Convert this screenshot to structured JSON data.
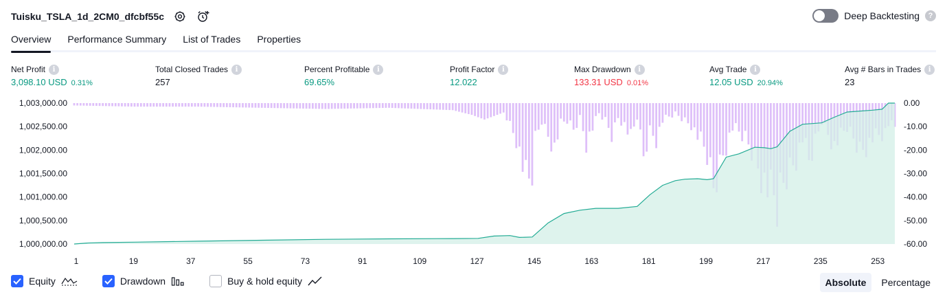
{
  "header": {
    "title": "Tuisku_TSLA_1d_2CM0_dfcbf55c",
    "settings_icon": "gear-icon",
    "alert_icon": "add-alert-icon",
    "deep_backtesting_label": "Deep Backtesting",
    "deep_backtesting_on": false
  },
  "tabs": [
    {
      "label": "Overview",
      "active": true
    },
    {
      "label": "Performance Summary",
      "active": false
    },
    {
      "label": "List of Trades",
      "active": false
    },
    {
      "label": "Properties",
      "active": false
    }
  ],
  "metrics": {
    "net_profit": {
      "label": "Net Profit",
      "value": "3,098.10 USD",
      "sub": "0.31%"
    },
    "total_closed_trades": {
      "label": "Total Closed Trades",
      "value": "257"
    },
    "percent_profitable": {
      "label": "Percent Profitable",
      "value": "69.65%"
    },
    "profit_factor": {
      "label": "Profit Factor",
      "value": "12.022"
    },
    "max_drawdown": {
      "label": "Max Drawdown",
      "value": "133.31 USD",
      "sub": "0.01%"
    },
    "avg_trade": {
      "label": "Avg Trade",
      "value": "12.05 USD",
      "sub": "20.94%"
    },
    "avg_bars": {
      "label": "Avg # Bars in Trades",
      "value": "23"
    }
  },
  "colors": {
    "accent": "#2962ff",
    "equity_line": "#22ab94",
    "equity_fill": "#d3efe7",
    "drawdown_bar": "#d8b4f8",
    "positive": "#089981",
    "negative": "#f23645"
  },
  "chart_data": {
    "type": "area",
    "x_ticks": [
      "1",
      "19",
      "37",
      "55",
      "73",
      "91",
      "109",
      "127",
      "145",
      "163",
      "181",
      "199",
      "217",
      "235",
      "253"
    ],
    "left_axis": {
      "label": "",
      "ticks": [
        "1,003,000.00",
        "1,002,500.00",
        "1,002,000.00",
        "1,001,500.00",
        "1,001,000.00",
        "1,000,500.00",
        "1,000,000.00"
      ],
      "range": [
        1000000,
        1003000
      ]
    },
    "right_axis": {
      "label": "",
      "ticks": [
        "0.00",
        "-10.00",
        "-20.00",
        "-30.00",
        "-40.00",
        "-50.00",
        "-60.00"
      ],
      "range": [
        -60,
        0
      ]
    },
    "xlim": [
      1,
      259
    ],
    "series": [
      {
        "name": "Equity",
        "axis": "left",
        "x": [
          1,
          5,
          10,
          20,
          40,
          60,
          80,
          100,
          120,
          128,
          133,
          138,
          141,
          145,
          150,
          155,
          160,
          165,
          172,
          178,
          182,
          186,
          190,
          193,
          197,
          200,
          202,
          206,
          210,
          215,
          218,
          220,
          222,
          226,
          230,
          236,
          240,
          244,
          248,
          252,
          255,
          257,
          259
        ],
        "y": [
          1000000,
          1000020,
          1000030,
          1000040,
          1000060,
          1000080,
          1000100,
          1000110,
          1000115,
          1000120,
          1000170,
          1000180,
          1000140,
          1000150,
          1000450,
          1000650,
          1000720,
          1000760,
          1000760,
          1000800,
          1001050,
          1001250,
          1001350,
          1001380,
          1001390,
          1001370,
          1001390,
          1001850,
          1001920,
          1002060,
          1002050,
          1002030,
          1002070,
          1002400,
          1002550,
          1002580,
          1002700,
          1002810,
          1002830,
          1002850,
          1002870,
          1003000,
          1003000
        ]
      },
      {
        "name": "Drawdown",
        "axis": "right",
        "type": "bar",
        "anchors_x": [
          1,
          20,
          40,
          60,
          80,
          100,
          120,
          126,
          130,
          136,
          140,
          142,
          143,
          144,
          145,
          146,
          148,
          150,
          152,
          154,
          156,
          158,
          160,
          162,
          164,
          166,
          168,
          170,
          172,
          174,
          176,
          178,
          180,
          182,
          184,
          186,
          190,
          195,
          198,
          200,
          202,
          205,
          208,
          212,
          215,
          217,
          219,
          221,
          222,
          223,
          225,
          228,
          230,
          232,
          236,
          240,
          244,
          248,
          250,
          252,
          256,
          258,
          259
        ],
        "anchors_y": [
          -1,
          -1.5,
          -1.5,
          -2,
          -2.5,
          -2,
          -3,
          -5,
          -7,
          -4,
          -20,
          -35,
          -44,
          -45,
          -40,
          -20,
          -10,
          -18,
          -25,
          -12,
          -10,
          -15,
          -8,
          -22,
          -14,
          -6,
          -10,
          -18,
          -8,
          -12,
          -20,
          -8,
          -30,
          -15,
          -20,
          -10,
          -6,
          -12,
          -22,
          -30,
          -48,
          -28,
          -14,
          -20,
          -30,
          -40,
          -48,
          -55,
          -60,
          -50,
          -40,
          -30,
          -20,
          -34,
          -10,
          -24,
          -14,
          -26,
          -24,
          -20,
          -18,
          -8,
          -16
        ]
      }
    ],
    "grid": false
  },
  "legend": {
    "items": [
      {
        "label": "Equity",
        "checked": true,
        "icon": "equity-line-icon"
      },
      {
        "label": "Drawdown",
        "checked": true,
        "icon": "drawdown-bars-icon"
      },
      {
        "label": "Buy & hold equity",
        "checked": false,
        "icon": "buy-hold-line-icon"
      }
    ]
  },
  "mode": {
    "absolute_label": "Absolute",
    "percentage_label": "Percentage",
    "selected": "absolute"
  }
}
